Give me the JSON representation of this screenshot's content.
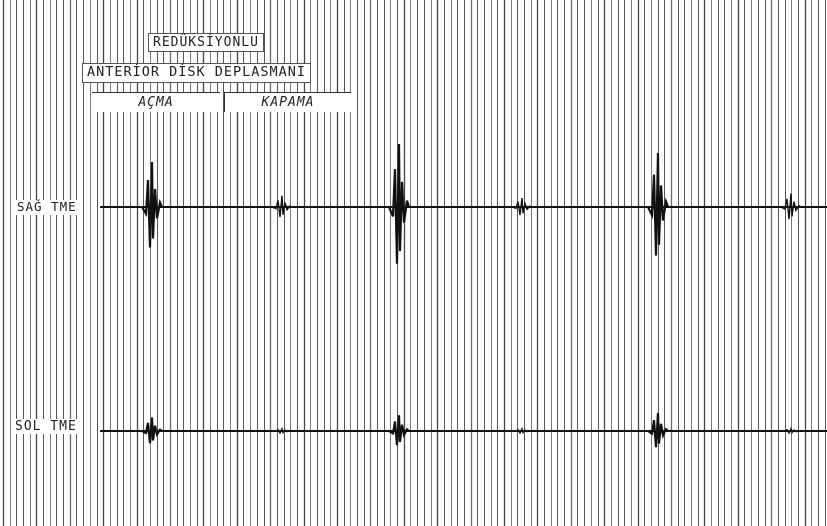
{
  "title": {
    "line1": "REDÜKSİYONLU",
    "line2": "ANTERİOR DİSK DEPLASMANI"
  },
  "legend": {
    "open_label": "AÇMA",
    "close_label": "KAPAMA"
  },
  "channels": {
    "right_label": "SAĞ TME",
    "left_label": "SOL TME"
  },
  "colors": {
    "grid": "#3a3a3a",
    "trace": "#111111",
    "paper": "#ffffff"
  },
  "events": {
    "right": [
      {
        "type": "open",
        "amplitude": 1.0
      },
      {
        "type": "close",
        "amplitude": 0.25
      },
      {
        "type": "open",
        "amplitude": 1.4
      },
      {
        "type": "close",
        "amplitude": 0.2
      },
      {
        "type": "open",
        "amplitude": 1.2
      },
      {
        "type": "close",
        "amplitude": 0.3
      }
    ],
    "left": [
      {
        "type": "open",
        "amplitude": 0.3
      },
      {
        "type": "close",
        "amplitude": 0.05
      },
      {
        "type": "open",
        "amplitude": 0.35
      },
      {
        "type": "close",
        "amplitude": 0.05
      },
      {
        "type": "open",
        "amplitude": 0.4
      },
      {
        "type": "close",
        "amplitude": 0.05
      }
    ]
  }
}
